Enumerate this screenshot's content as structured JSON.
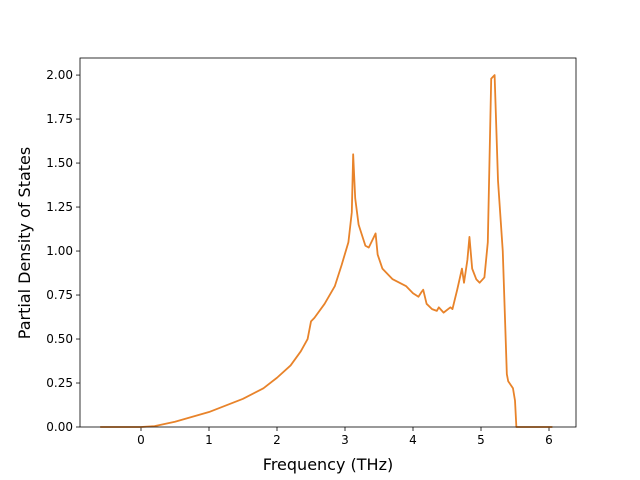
{
  "chart_data": {
    "type": "line",
    "xlabel": "Frequency (THz)",
    "ylabel": "Partial Density of States",
    "xlim": [
      -0.897,
      6.397
    ],
    "ylim": [
      0,
      2.097
    ],
    "xticks": [
      0,
      1,
      2,
      3,
      4,
      5,
      6
    ],
    "yticks": [
      {
        "value": 0,
        "label": "0.00"
      },
      {
        "value": 0.25,
        "label": "0.25"
      },
      {
        "value": 0.5,
        "label": "0.50"
      },
      {
        "value": 0.75,
        "label": "0.75"
      },
      {
        "value": 1,
        "label": "1.00"
      },
      {
        "value": 1.25,
        "label": "1.25"
      },
      {
        "value": 1.5,
        "label": "1.50"
      },
      {
        "value": 1.75,
        "label": "1.75"
      },
      {
        "value": 2,
        "label": "2.00"
      }
    ],
    "x": [
      -0.6,
      0,
      0.2,
      0.5,
      1,
      1.5,
      1.8,
      2.0,
      2.2,
      2.35,
      2.45,
      2.5,
      2.55,
      2.7,
      2.85,
      2.95,
      3.05,
      3.1,
      3.12,
      3.15,
      3.2,
      3.3,
      3.35,
      3.4,
      3.45,
      3.48,
      3.55,
      3.7,
      3.9,
      4.0,
      4.08,
      4.13,
      4.15,
      4.2,
      4.28,
      4.35,
      4.38,
      4.45,
      4.55,
      4.58,
      4.65,
      4.72,
      4.75,
      4.8,
      4.83,
      4.87,
      4.93,
      4.98,
      5.05,
      5.1,
      5.15,
      5.2,
      5.25,
      5.32,
      5.38,
      5.4,
      5.47,
      5.5,
      5.52,
      6.05
    ],
    "series": [
      {
        "color": "#e8832a",
        "values": [
          0,
          0,
          0.005,
          0.03,
          0.085,
          0.16,
          0.22,
          0.28,
          0.35,
          0.43,
          0.5,
          0.6,
          0.62,
          0.7,
          0.8,
          0.92,
          1.05,
          1.22,
          1.55,
          1.3,
          1.15,
          1.03,
          1.02,
          1.06,
          1.1,
          0.98,
          0.9,
          0.84,
          0.8,
          0.76,
          0.74,
          0.77,
          0.78,
          0.7,
          0.67,
          0.66,
          0.68,
          0.65,
          0.68,
          0.67,
          0.78,
          0.9,
          0.82,
          0.95,
          1.08,
          0.9,
          0.84,
          0.82,
          0.85,
          1.05,
          1.98,
          2.0,
          1.4,
          1.0,
          0.3,
          0.26,
          0.22,
          0.15,
          0,
          0
        ]
      }
    ]
  }
}
